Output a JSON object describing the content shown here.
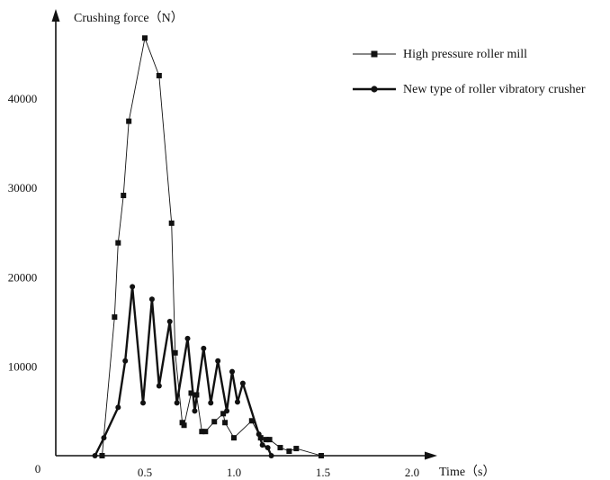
{
  "chart_data": {
    "type": "line",
    "xlabel": "Time（s）",
    "ylabel": "Crushing force（N）",
    "xlim": [
      0,
      2.1
    ],
    "ylim": [
      0,
      48000
    ],
    "x_ticks": [
      0.5,
      1.0,
      1.5,
      2.0
    ],
    "x_tick_labels": [
      "0.5",
      "1.0",
      "1.5",
      "2.0"
    ],
    "y_ticks": [
      10000,
      20000,
      30000,
      40000
    ],
    "y_tick_labels": [
      "10000",
      "20000",
      "30000",
      "40000"
    ],
    "origin_label": "0",
    "grid": false,
    "legend_position": "top-right",
    "series": [
      {
        "name": "High pressure roller mill",
        "marker": "square",
        "line_width": "thin",
        "color": "#111111",
        "points": [
          [
            0.26,
            0
          ],
          [
            0.33,
            15500
          ],
          [
            0.35,
            23800
          ],
          [
            0.38,
            29100
          ],
          [
            0.41,
            37400
          ],
          [
            0.5,
            46700
          ],
          [
            0.58,
            42500
          ],
          [
            0.65,
            26000
          ],
          [
            0.67,
            11500
          ],
          [
            0.71,
            3700
          ],
          [
            0.72,
            3400
          ],
          [
            0.76,
            7000
          ],
          [
            0.79,
            6800
          ],
          [
            0.82,
            2700
          ],
          [
            0.84,
            2700
          ],
          [
            0.89,
            3800
          ],
          [
            0.94,
            4700
          ],
          [
            0.95,
            3700
          ],
          [
            1.0,
            2000
          ],
          [
            1.1,
            3900
          ],
          [
            1.15,
            2000
          ],
          [
            1.18,
            1800
          ],
          [
            1.2,
            1800
          ],
          [
            1.26,
            900
          ],
          [
            1.31,
            500
          ],
          [
            1.35,
            800
          ],
          [
            1.49,
            0
          ]
        ]
      },
      {
        "name": "New type of roller vibratory crusher",
        "marker": "circle",
        "line_width": "thick",
        "color": "#111111",
        "points": [
          [
            0.22,
            0
          ],
          [
            0.27,
            2000
          ],
          [
            0.35,
            5400
          ],
          [
            0.39,
            10600
          ],
          [
            0.43,
            18900
          ],
          [
            0.49,
            5900
          ],
          [
            0.54,
            17500
          ],
          [
            0.58,
            7800
          ],
          [
            0.64,
            15000
          ],
          [
            0.68,
            5900
          ],
          [
            0.74,
            13100
          ],
          [
            0.78,
            5000
          ],
          [
            0.83,
            12000
          ],
          [
            0.87,
            5900
          ],
          [
            0.91,
            10600
          ],
          [
            0.96,
            5000
          ],
          [
            0.99,
            9400
          ],
          [
            1.02,
            6000
          ],
          [
            1.05,
            8100
          ],
          [
            1.14,
            2400
          ],
          [
            1.16,
            1200
          ],
          [
            1.19,
            900
          ],
          [
            1.21,
            0
          ]
        ]
      }
    ]
  }
}
